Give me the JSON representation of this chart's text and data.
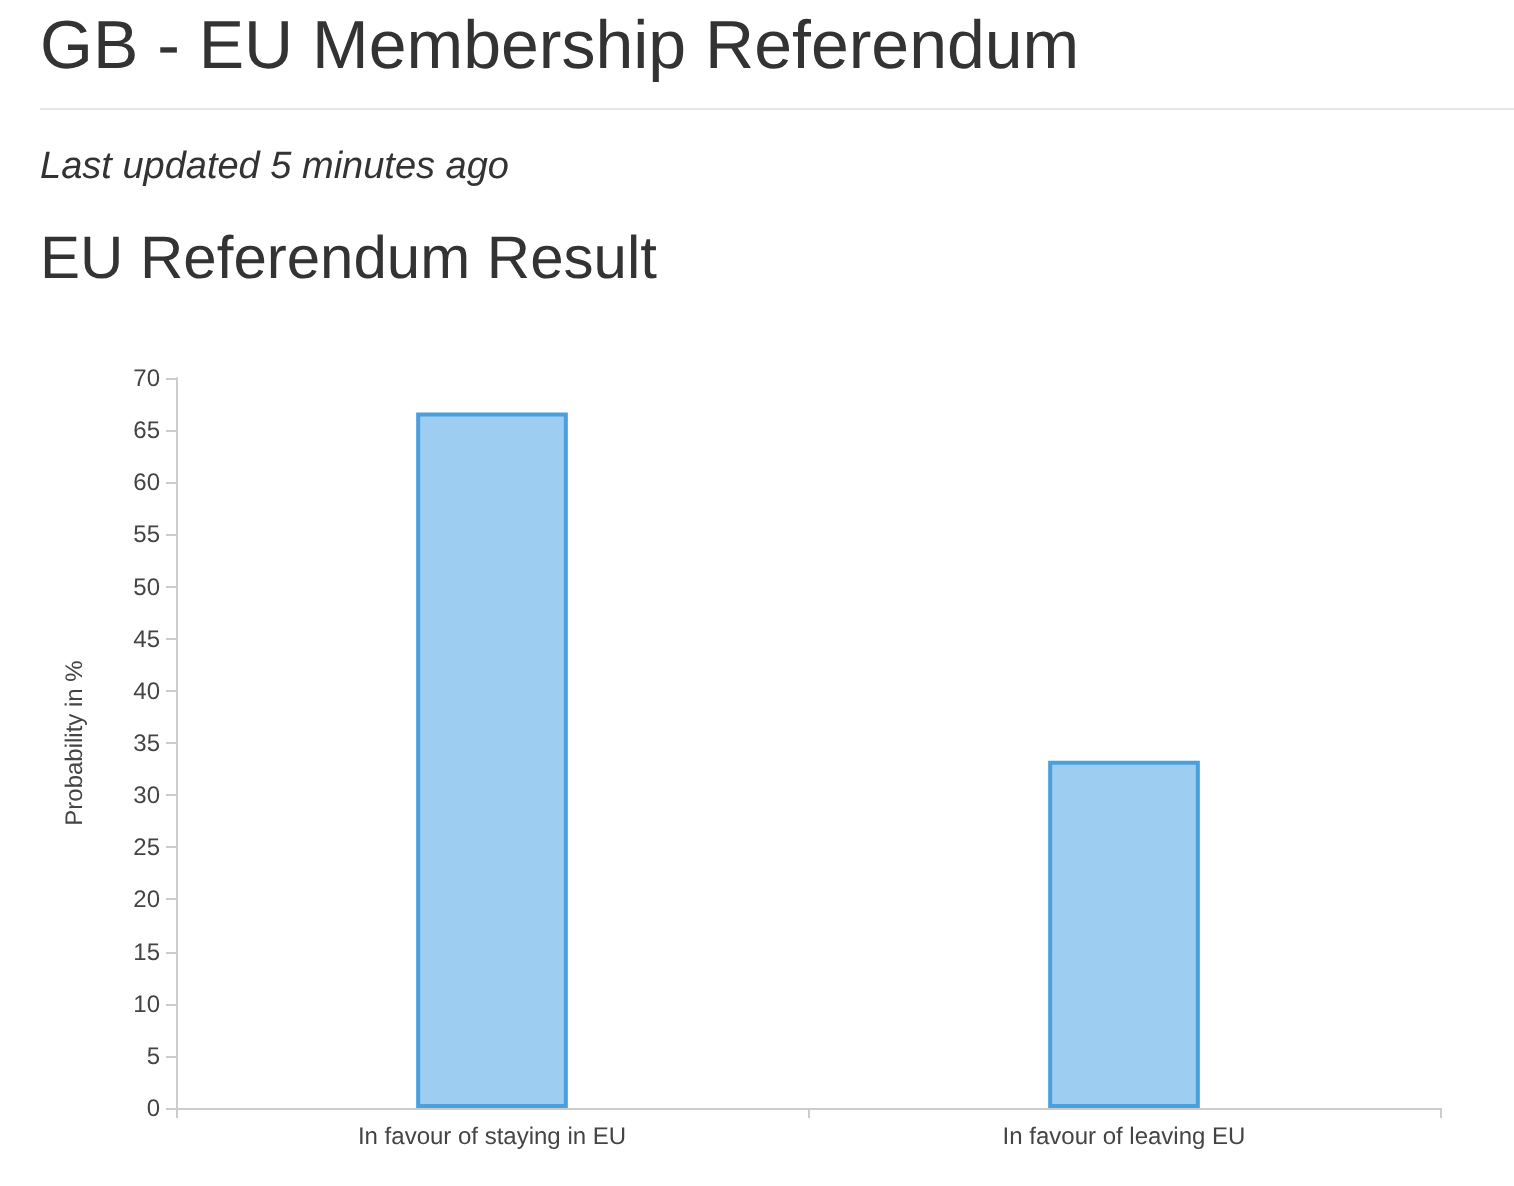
{
  "chart_data": {
    "type": "bar",
    "title": "EU Referendum Result",
    "subtitle": "Last updated 5 minutes ago",
    "annotations": [
      "GB - EU Membership Referendum"
    ],
    "ylabel": "Probability in %",
    "categories": [
      "In favour of staying in EU",
      "In favour of leaving EU"
    ],
    "values": [
      66.7,
      33.3
    ],
    "color": "#9dcdf0",
    "ylim": [
      0,
      70
    ],
    "yticks": [
      0,
      5,
      10,
      15,
      20,
      25,
      30,
      35,
      40,
      45,
      50,
      55,
      60,
      65,
      70
    ],
    "grid": false
  }
}
